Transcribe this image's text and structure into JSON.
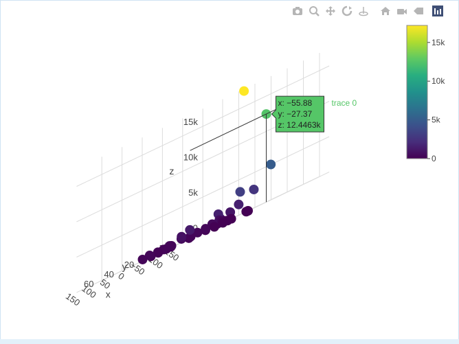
{
  "modebar": {
    "buttons": [
      {
        "name": "camera-icon",
        "title": "Download plot as a png"
      },
      {
        "name": "zoom-icon",
        "title": "Zoom"
      },
      {
        "name": "pan-icon",
        "title": "Pan"
      },
      {
        "name": "orbit-rotation-icon",
        "title": "Orbital rotation"
      },
      {
        "name": "turntable-rotation-icon",
        "title": "Turntable rotation"
      },
      {
        "name": "home-icon",
        "title": "Reset camera to default"
      },
      {
        "name": "camera-view-icon",
        "title": "Reset camera to last save"
      },
      {
        "name": "hover-toggle-icon",
        "title": "Toggle show closest data on hover"
      },
      {
        "name": "plotly-logo-icon",
        "title": "Produced with Plotly"
      }
    ],
    "icon_color": "#b5b5b5",
    "logo_color": "#3f4f75"
  },
  "chart_data": {
    "type": "scatter",
    "dimensions": 3,
    "series": [
      {
        "name": "trace 0",
        "colorscale": "Viridis",
        "points": [
          {
            "x": -55.88,
            "y": -27.37,
            "z": 12446.3
          },
          {
            "x": -10,
            "y": -20,
            "z": 17200
          },
          {
            "x": -45,
            "y": -5,
            "z": 3200
          },
          {
            "x": -140,
            "y": -5,
            "z": 5000
          },
          {
            "x": -150,
            "y": 15,
            "z": 2600
          },
          {
            "x": -150,
            "y": 30,
            "z": 1500
          },
          {
            "x": 40,
            "y": -40,
            "z": 0
          },
          {
            "x": 30,
            "y": -35,
            "z": 0
          },
          {
            "x": 45,
            "y": -25,
            "z": 0
          },
          {
            "x": 40,
            "y": -15,
            "z": 0
          },
          {
            "x": 35,
            "y": -5,
            "z": 0
          },
          {
            "x": 10,
            "y": -10,
            "z": 0
          },
          {
            "x": -30,
            "y": 0,
            "z": 1000
          },
          {
            "x": -20,
            "y": 5,
            "z": 300
          },
          {
            "x": -90,
            "y": 30,
            "z": 600
          },
          {
            "x": -100,
            "y": 40,
            "z": 400
          },
          {
            "x": -110,
            "y": 50,
            "z": 300
          },
          {
            "x": -120,
            "y": 35,
            "z": 200
          },
          {
            "x": -115,
            "y": 45,
            "z": 500
          },
          {
            "x": -125,
            "y": 55,
            "z": 100
          },
          {
            "x": -95,
            "y": 60,
            "z": 200
          },
          {
            "x": -105,
            "y": 65,
            "z": 100
          },
          {
            "x": -130,
            "y": 42,
            "z": 800
          },
          {
            "x": -85,
            "y": 50,
            "z": 300
          },
          {
            "x": -140,
            "y": 48,
            "z": 200
          },
          {
            "x": -112,
            "y": 38,
            "z": 1500
          },
          {
            "x": -20,
            "y": 55,
            "z": 200
          },
          {
            "x": -30,
            "y": 60,
            "z": 300
          },
          {
            "x": -10,
            "y": 65,
            "z": 100
          },
          {
            "x": -25,
            "y": 70,
            "z": 200
          },
          {
            "x": -40,
            "y": 62,
            "z": 100
          },
          {
            "x": -15,
            "y": 75,
            "z": 300
          },
          {
            "x": -35,
            "y": 50,
            "z": 500
          },
          {
            "x": -5,
            "y": 58,
            "z": 200
          },
          {
            "x": -45,
            "y": 68,
            "z": 100
          },
          {
            "x": -20,
            "y": 45,
            "z": 800
          },
          {
            "x": -30,
            "y": 40,
            "z": 1200
          },
          {
            "x": -15,
            "y": 82,
            "z": 200
          },
          {
            "x": -28,
            "y": 78,
            "z": 100
          }
        ]
      }
    ],
    "axes": {
      "x": {
        "title": "x",
        "ticks": [
          "150",
          "100",
          "50",
          "0",
          "−50",
          "−100",
          "−150"
        ],
        "range": [
          -180,
          180
        ]
      },
      "y": {
        "title": "y",
        "ticks": [
          "−40",
          "−20",
          "0",
          "20",
          "40",
          "60"
        ],
        "range": [
          -50,
          85
        ]
      },
      "z": {
        "title": "z",
        "ticks": [
          "0",
          "5k",
          "10k",
          "15k"
        ],
        "range": [
          0,
          17500
        ]
      }
    },
    "colorbar": {
      "ticks": [
        "15k",
        "10k",
        "5k",
        "0"
      ],
      "cmin": 0,
      "cmax": 17200
    },
    "hover": {
      "lines": [
        "x: −55.88",
        "y: −27.37",
        "z: 12.4463k"
      ],
      "name": "trace 0",
      "color": "#55c667"
    },
    "grid": true,
    "legend": "none"
  }
}
